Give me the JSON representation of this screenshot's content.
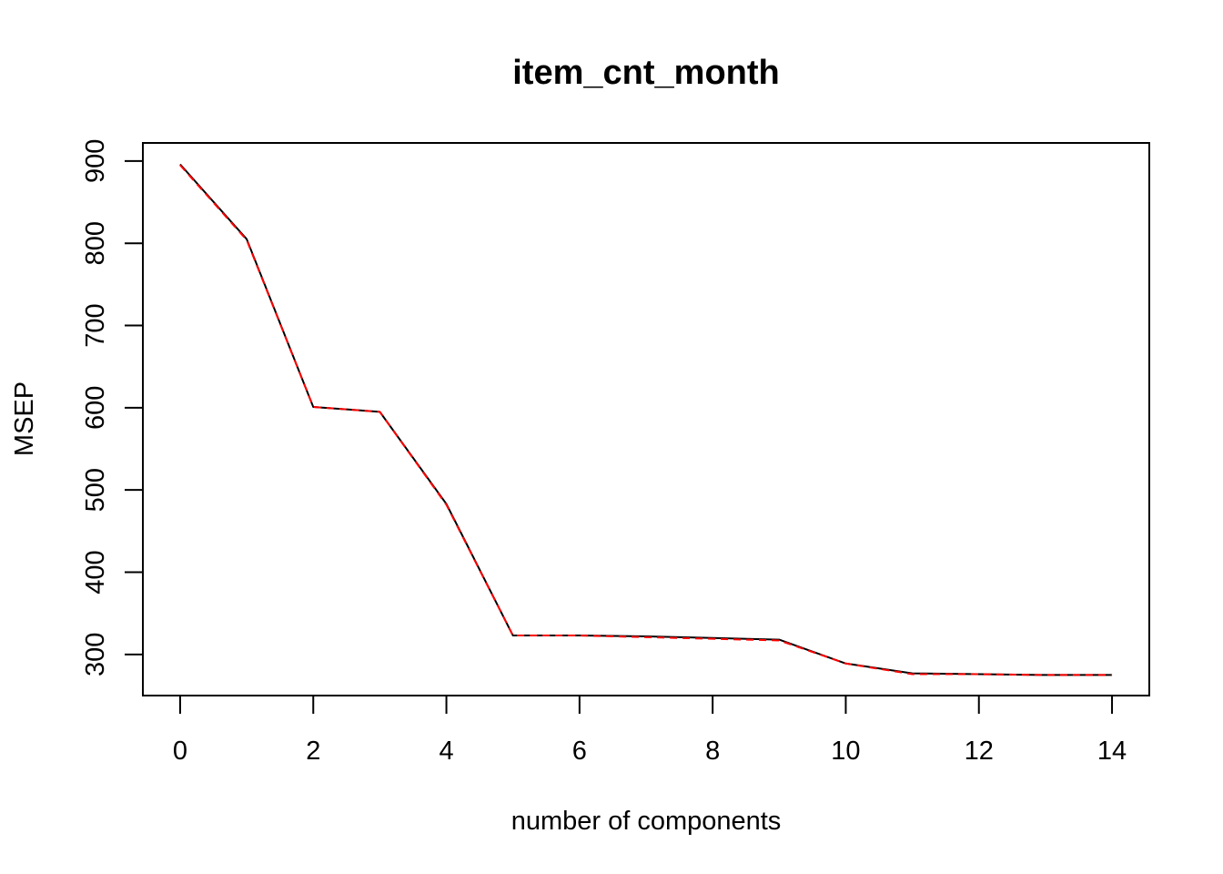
{
  "chart_data": {
    "type": "line",
    "title": "item_cnt_month",
    "xlabel": "number of components",
    "ylabel": "MSEP",
    "xlim": [
      -0.56,
      14.56
    ],
    "ylim": [
      250,
      922
    ],
    "x_ticks": [
      0,
      2,
      4,
      6,
      8,
      10,
      12,
      14
    ],
    "x_tick_labels": [
      "0",
      "2",
      "4",
      "6",
      "8",
      "10",
      "12",
      "14"
    ],
    "y_ticks": [
      300,
      400,
      500,
      600,
      700,
      800,
      900
    ],
    "y_tick_labels": [
      "300",
      "400",
      "500",
      "600",
      "700",
      "800",
      "900"
    ],
    "grid": false,
    "x": [
      0,
      1,
      2,
      3,
      4,
      5,
      6,
      7,
      8,
      9,
      10,
      11,
      12,
      13,
      14
    ],
    "series": [
      {
        "color": "#000000",
        "dash": "solid",
        "values": [
          896,
          805,
          601,
          595,
          483,
          323,
          323,
          322,
          320,
          318,
          289,
          277,
          276,
          275,
          275
        ]
      },
      {
        "color": "#ff0000",
        "dash": "dashed",
        "values": [
          895,
          804,
          601,
          595,
          482,
          323,
          323,
          321,
          319,
          317,
          289,
          276,
          276,
          275,
          275
        ]
      }
    ]
  }
}
